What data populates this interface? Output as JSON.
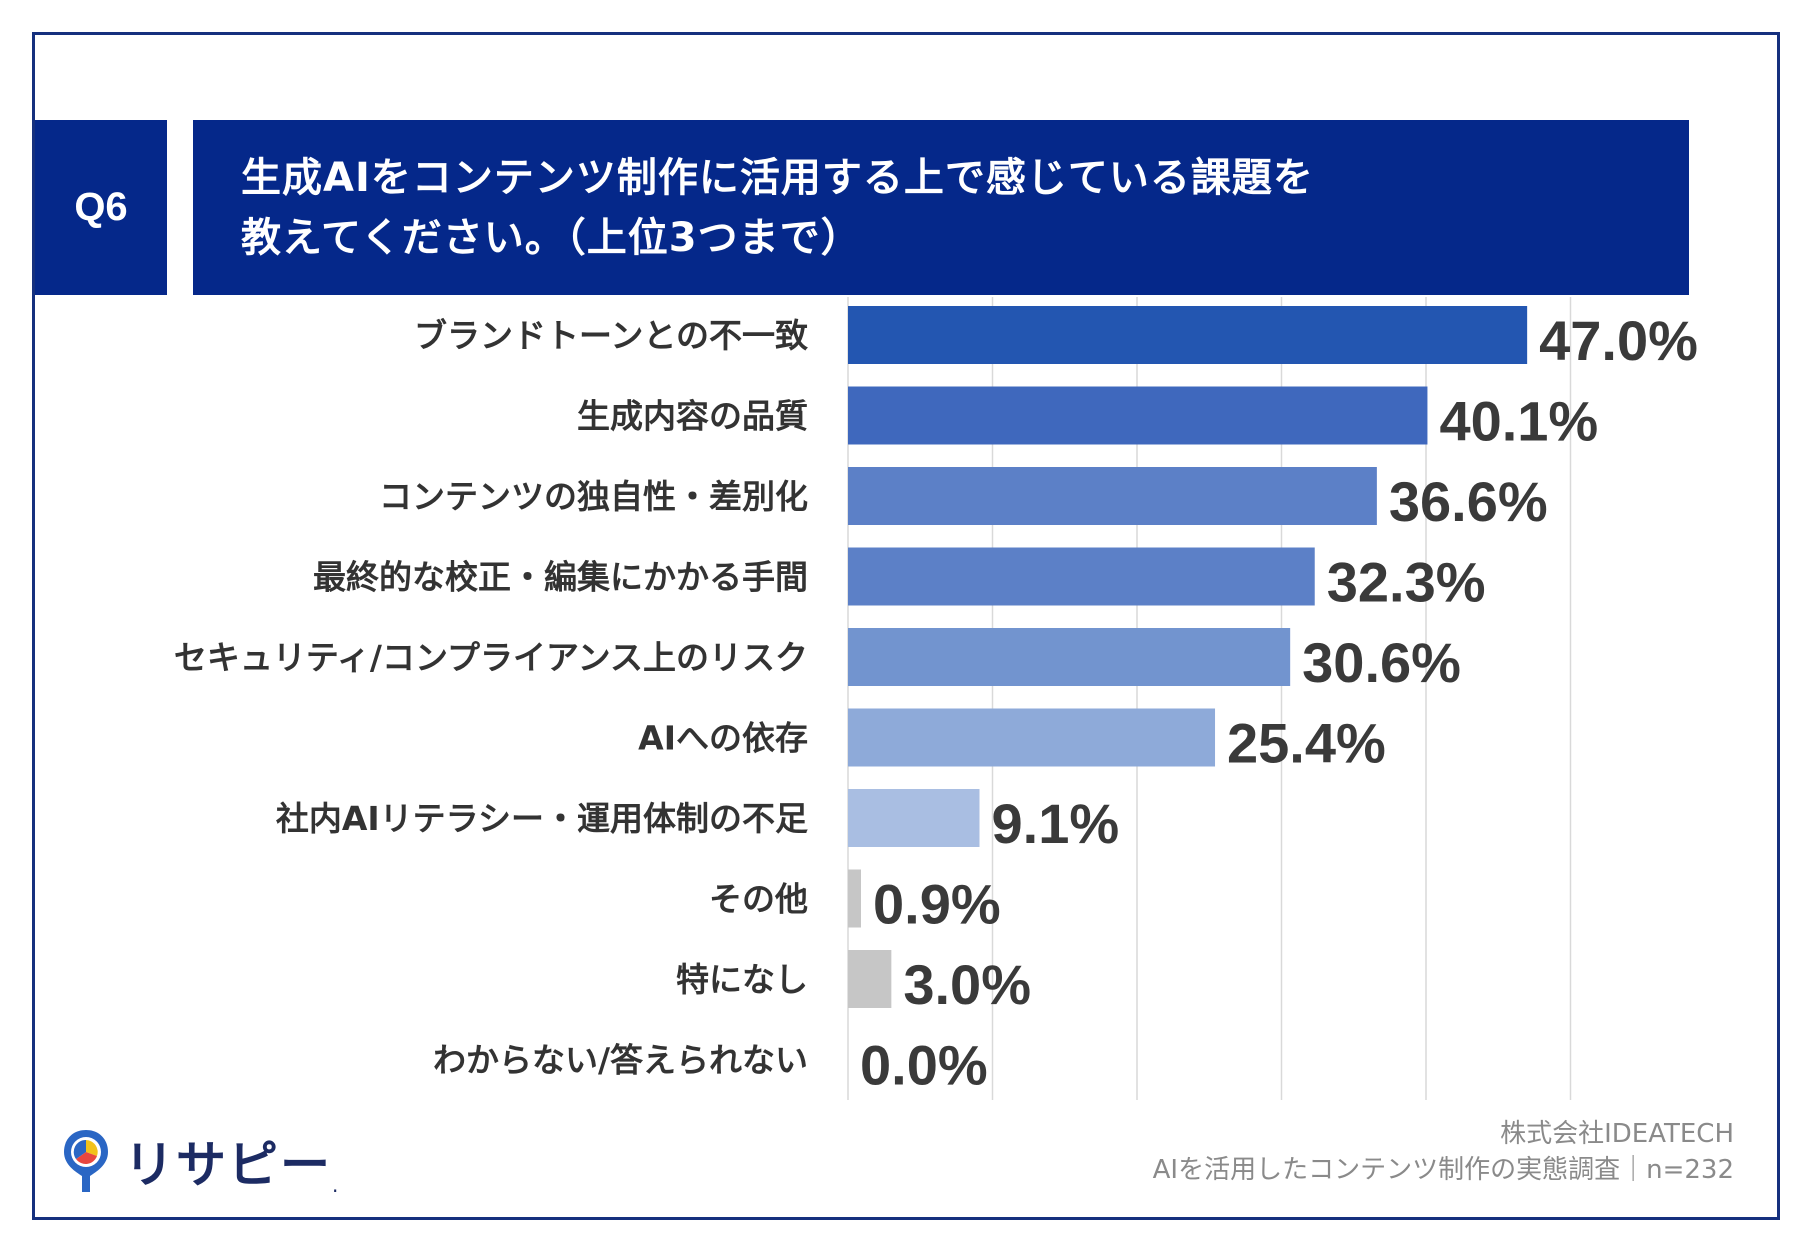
{
  "header": {
    "q_label": "Q6",
    "title_line1": "生成AIをコンテンツ制作に活用する上で感じている課題を",
    "title_line2": "教えてください。（上位3つまで）"
  },
  "chart_data": {
    "type": "bar",
    "orientation": "horizontal",
    "title": "生成AIをコンテンツ制作に活用する上で感じている課題を教えてください。（上位3つまで）",
    "unit": "%",
    "xlim": [
      0,
      50
    ],
    "grid": true,
    "categories": [
      "ブランドトーンとの不一致",
      "生成内容の品質",
      "コンテンツの独自性・差別化",
      "最終的な校正・編集にかかる手間",
      "セキュリティ/コンプライアンス上のリスク",
      "AIへの依存",
      "社内AIリテラシー・運用体制の不足",
      "その他",
      "特になし",
      "わからない/答えられない"
    ],
    "values": [
      47.0,
      40.1,
      36.6,
      32.3,
      30.6,
      25.4,
      9.1,
      0.9,
      3.0,
      0.0
    ],
    "value_labels": [
      "47.0%",
      "40.1%",
      "36.6%",
      "32.3%",
      "30.6%",
      "25.4%",
      "9.1%",
      "0.9%",
      "3.0%",
      "0.0%"
    ],
    "colors": [
      "#2356b1",
      "#3f68bd",
      "#5c80c7",
      "#5c80c7",
      "#7294cf",
      "#8eaad9",
      "#a9bee2",
      "#c6c6c6",
      "#c6c6c6",
      "#c6c6c6"
    ]
  },
  "footer": {
    "brand": "リサピー",
    "brand_mark": ".",
    "company": "株式会社IDEATECH",
    "survey": "AIを活用したコンテンツ制作の実態調査｜n=232"
  },
  "colors": {
    "frame": "#15307e",
    "header_bg": "#05288a",
    "grid": "#d9d9d9"
  }
}
